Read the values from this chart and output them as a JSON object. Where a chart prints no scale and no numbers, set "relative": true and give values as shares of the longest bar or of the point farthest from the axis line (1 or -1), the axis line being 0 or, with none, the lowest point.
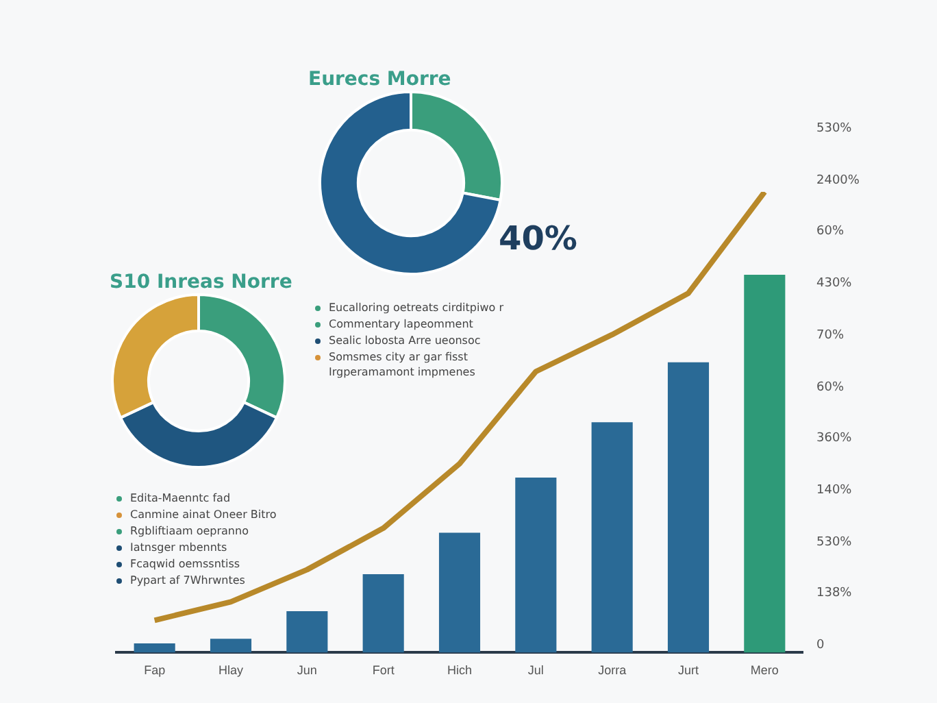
{
  "chart_data": [
    {
      "type": "donut",
      "title": "Eurecs Morre",
      "categories": [
        null,
        null
      ],
      "values": [
        28,
        72
      ],
      "colors": [
        "#3a9e7c",
        "#23608e"
      ],
      "legend": false,
      "annotations": [
        "Eucalloring oetreats cirditpiwo r",
        "Commentary lapeomment",
        "Sealic lobosta Arre ueonsoc",
        "Somsmes city ar gar fisst Irgperamamont impmenes"
      ]
    },
    {
      "type": "donut",
      "title": "S10 Inreas Norre",
      "categories": [
        null,
        null,
        null
      ],
      "values": [
        32,
        36,
        32
      ],
      "colors": [
        "#3a9e7c",
        "#1f5680",
        "#d6a23a"
      ],
      "legend": false,
      "annotations": [
        "Edita-Maenntc fad",
        "Canmine ainat Oneer Bitro",
        "Rgbliftiaam oepranno",
        "Iatnsger mbennts",
        "Fcaqwid oemssntiss",
        "Pypart af 7Whrwntes"
      ]
    },
    {
      "type": "bar",
      "relative": true,
      "legend": false,
      "categories": [
        "Fap",
        "Hlay",
        "Jun",
        "Fort",
        "Hich",
        "Jul",
        "Jorra",
        "Jurt",
        "Mero"
      ],
      "series": [
        {
          "type": "bar",
          "colors": [
            "#2a6a96",
            "#2a6a96",
            "#2a6a96",
            "#2a6a96",
            "#2a6a96",
            "#2a6a96",
            "#2a6a96",
            "#2a6a96",
            "#2e9a78"
          ],
          "values": [
            0.02,
            0.03,
            0.09,
            0.17,
            0.26,
            0.38,
            0.5,
            0.63,
            0.82
          ]
        },
        {
          "type": "line",
          "color": "#b8892a",
          "marker": "none",
          "values": [
            0.07,
            0.11,
            0.18,
            0.27,
            0.41,
            0.61,
            0.69,
            0.78,
            1
          ]
        }
      ],
      "annotations": [
        "40%",
        "530%",
        "2400%",
        "60%",
        "430%",
        "70%",
        "60%",
        "360%",
        "140%",
        "530%",
        "138%",
        "0"
      ]
    }
  ]
}
